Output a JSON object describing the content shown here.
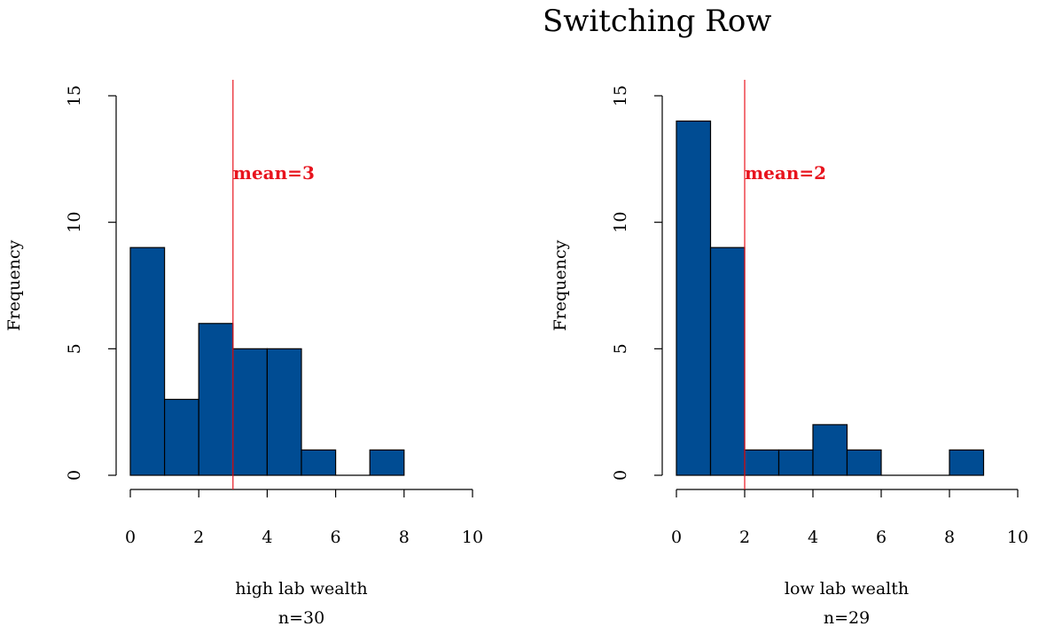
{
  "title": "Switching Row",
  "colors": {
    "bar": "#004c93",
    "mean_line": "#e8141e"
  },
  "chart_data": [
    {
      "type": "bar",
      "bin_edges": [
        0,
        1,
        2,
        3,
        4,
        5,
        6,
        7,
        8
      ],
      "values": [
        9,
        3,
        6,
        5,
        5,
        1,
        0,
        1
      ],
      "xlim": [
        0,
        10
      ],
      "ylim": [
        0,
        15
      ],
      "xticks": [
        0,
        2,
        4,
        6,
        8,
        10
      ],
      "yticks": [
        0,
        5,
        10,
        15
      ],
      "ylabel": "Frequency",
      "xlabel": "high lab wealth",
      "subtitle": "n=30",
      "mean": 3,
      "mean_label": "mean=3",
      "grid": false
    },
    {
      "type": "bar",
      "bin_edges": [
        0,
        1,
        2,
        3,
        4,
        5,
        6,
        7,
        8,
        9
      ],
      "values": [
        14,
        9,
        1,
        1,
        2,
        1,
        0,
        0,
        1
      ],
      "xlim": [
        0,
        10
      ],
      "ylim": [
        0,
        15
      ],
      "xticks": [
        0,
        2,
        4,
        6,
        8,
        10
      ],
      "yticks": [
        0,
        5,
        10,
        15
      ],
      "ylabel": "Frequency",
      "xlabel": "low lab wealth",
      "subtitle": "n=29",
      "mean": 2,
      "mean_label": "mean=2",
      "grid": false
    }
  ]
}
